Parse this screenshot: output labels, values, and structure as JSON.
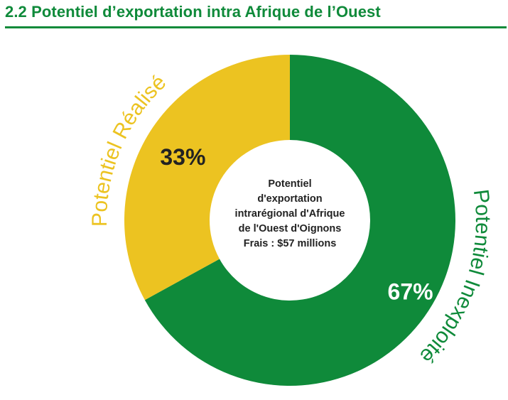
{
  "heading": "2.2 Potentiel d’exportation intra Afrique de l’Ouest",
  "center_lines": [
    "Potentiel",
    "d'exportation",
    "intrarégional d'Afrique",
    "de l'Ouest d'Oignons",
    "Frais : $57 millions"
  ],
  "colors": {
    "accent": "#0f8a3a",
    "realise": "#ecc321",
    "inexploite": "#0f8a3a",
    "dark_text": "#222222"
  },
  "chart_data": {
    "type": "pie",
    "donut": true,
    "title": "",
    "slices": [
      {
        "name": "Potentiel Inexploité",
        "value": 67,
        "pct_label": "67%"
      },
      {
        "name": "Potentiel Réalisé",
        "value": 33,
        "pct_label": "33%"
      }
    ]
  }
}
